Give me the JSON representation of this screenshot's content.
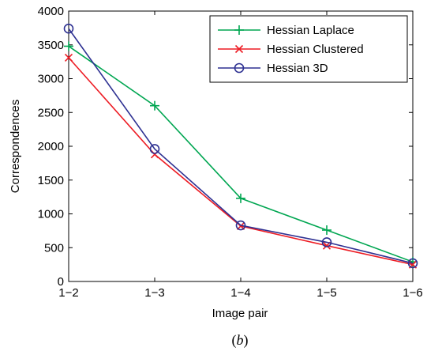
{
  "chart_data": {
    "type": "line",
    "categories": [
      "1−2",
      "1−3",
      "1−4",
      "1−5",
      "1−6"
    ],
    "series": [
      {
        "name": "Hessian Laplace",
        "values": [
          3480,
          2600,
          1230,
          760,
          290
        ],
        "color": "#00a651",
        "marker": "plus"
      },
      {
        "name": "Hessian Clustered",
        "values": [
          3310,
          1880,
          820,
          530,
          250
        ],
        "color": "#ed1c24",
        "marker": "x"
      },
      {
        "name": "Hessian 3D",
        "values": [
          3740,
          1960,
          830,
          580,
          270
        ],
        "color": "#2e3192",
        "marker": "circle"
      }
    ],
    "xlabel": "Image pair",
    "ylabel": "Correspondences",
    "ylim": [
      0,
      4000
    ],
    "yticks": [
      "0",
      "500",
      "1000",
      "1500",
      "2000",
      "2500",
      "3000",
      "3500",
      "4000"
    ],
    "legend_position": "top-right",
    "grid": false
  },
  "caption": {
    "letter": "b",
    "open": "(",
    "close": ")"
  }
}
